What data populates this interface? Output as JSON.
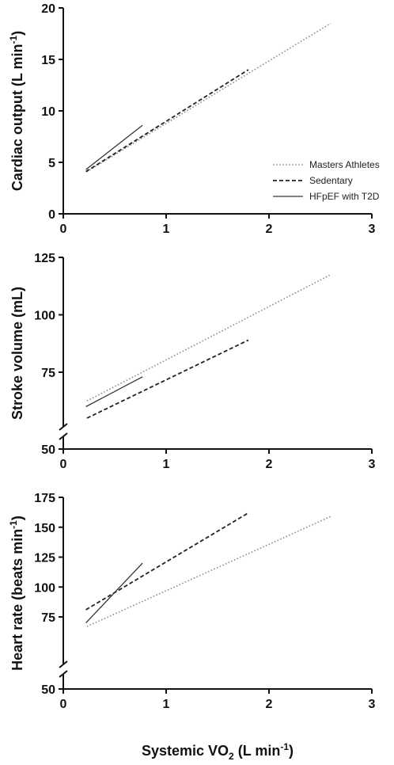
{
  "chart_data": [
    {
      "type": "line",
      "id": "cardiac",
      "ylabel": "Cardiac output (L min",
      "ylabel_sup": "-1",
      "ylabel_tail": ")",
      "xlim": [
        0,
        3
      ],
      "ylim": [
        0,
        20
      ],
      "x_ticks": [
        "0",
        "1",
        "2",
        "3"
      ],
      "y_ticks": [
        "0",
        "5",
        "10",
        "15",
        "20"
      ],
      "y_tick_values": [
        0,
        5,
        10,
        15,
        20
      ],
      "axis_break": false,
      "legend_position": "right-center",
      "series": [
        {
          "name": "Masters Athletes",
          "style": "dotted",
          "x": [
            0.23,
            2.6
          ],
          "y": [
            4.1,
            18.5
          ]
        },
        {
          "name": "Sedentary",
          "style": "dashed",
          "x": [
            0.22,
            1.8
          ],
          "y": [
            4.1,
            14.0
          ]
        },
        {
          "name": "HFpEF with T2D",
          "style": "solid",
          "x": [
            0.22,
            0.77
          ],
          "y": [
            4.3,
            8.6
          ]
        }
      ]
    },
    {
      "type": "line",
      "id": "stroke",
      "ylabel": "Stroke volume (mL)",
      "ylabel_sup": "",
      "ylabel_tail": "",
      "xlim": [
        0,
        3
      ],
      "ylim": [
        50,
        125
      ],
      "x_ticks": [
        "0",
        "1",
        "2",
        "3"
      ],
      "y_ticks": [
        "50",
        "75",
        "100",
        "125"
      ],
      "y_tick_values": [
        50,
        75,
        100,
        125
      ],
      "axis_break": true,
      "series": [
        {
          "name": "Masters Athletes",
          "style": "dotted",
          "x": [
            0.23,
            2.6
          ],
          "y": [
            62.5,
            117.5
          ]
        },
        {
          "name": "Sedentary",
          "style": "dashed",
          "x": [
            0.23,
            1.8
          ],
          "y": [
            55,
            89
          ]
        },
        {
          "name": "HFpEF with T2D",
          "style": "solid",
          "x": [
            0.22,
            0.77
          ],
          "y": [
            60,
            73
          ]
        }
      ]
    },
    {
      "type": "line",
      "id": "heart",
      "ylabel": "Heart rate (beats min",
      "ylabel_sup": "-1",
      "ylabel_tail": ")",
      "xlabel": "Systemic VO",
      "xlabel_sub": "2",
      "xlabel_tail": " (L min",
      "xlabel_sup": "-1",
      "xlabel_end": ")",
      "xlim": [
        0,
        3
      ],
      "ylim": [
        50,
        175
      ],
      "x_ticks": [
        "0",
        "1",
        "2",
        "3"
      ],
      "y_ticks": [
        "50",
        "75",
        "100",
        "125",
        "150",
        "175"
      ],
      "y_tick_values": [
        50,
        75,
        100,
        125,
        150,
        175
      ],
      "axis_break": true,
      "series": [
        {
          "name": "Masters Athletes",
          "style": "dotted",
          "x": [
            0.23,
            2.6
          ],
          "y": [
            67,
            159
          ]
        },
        {
          "name": "Sedentary",
          "style": "dashed",
          "x": [
            0.22,
            1.8
          ],
          "y": [
            81,
            162
          ]
        },
        {
          "name": "HFpEF with T2D",
          "style": "solid",
          "x": [
            0.22,
            0.77
          ],
          "y": [
            70,
            120
          ]
        }
      ]
    }
  ],
  "colors": {
    "dotted": "#888888",
    "dashed": "#222222",
    "solid": "#333333"
  }
}
